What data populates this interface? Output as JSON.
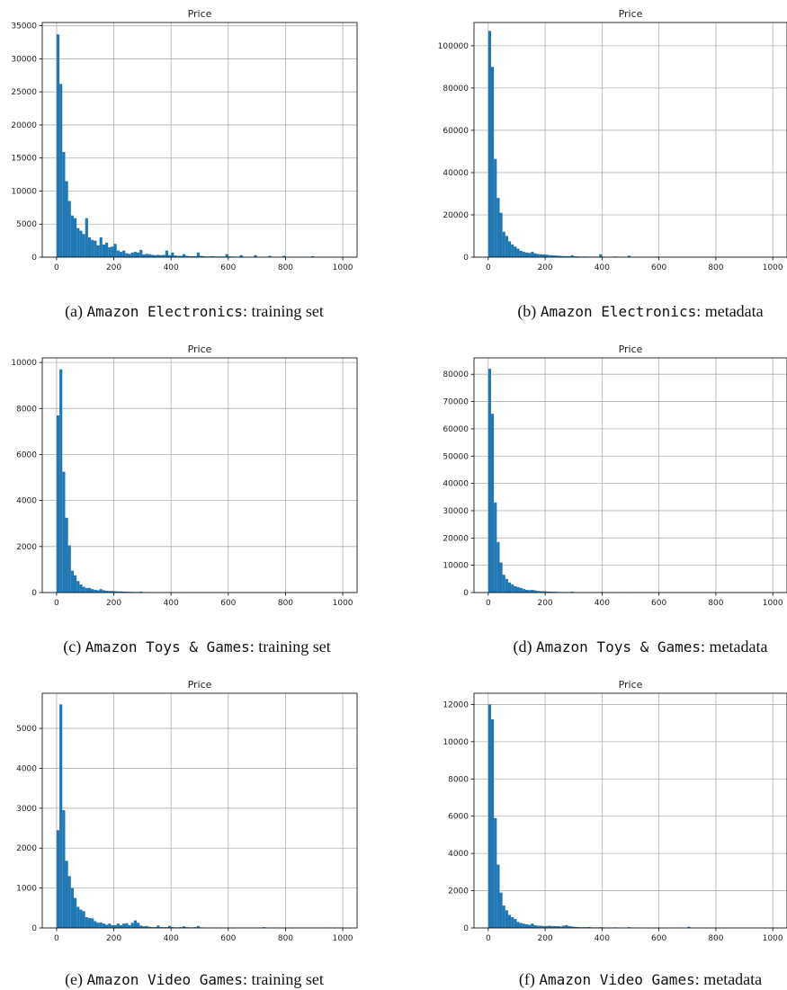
{
  "figure": {
    "colors": {
      "bar": "#1f77b4",
      "grid": "#b0b0b0",
      "frame": "#000000"
    },
    "panels": [
      {
        "title": "Price",
        "caption": {
          "label": "(a) ",
          "dataset": "Amazon Electronics",
          "suffix": ": training set"
        }
      },
      {
        "title": "Price",
        "caption": {
          "label": "(b) ",
          "dataset": "Amazon Electronics",
          "suffix": ": metadata"
        }
      },
      {
        "title": "Price",
        "caption": {
          "label": "(c) ",
          "dataset": "Amazon Toys & Games",
          "suffix": ": training set"
        }
      },
      {
        "title": "Price",
        "caption": {
          "label": "(d) ",
          "dataset": "Amazon Toys & Games",
          "suffix": ": metadata"
        }
      },
      {
        "title": "Price",
        "caption": {
          "label": "(e) ",
          "dataset": "Amazon Video Games",
          "suffix": ": training set"
        }
      },
      {
        "title": "Price",
        "caption": {
          "label": "(f) ",
          "dataset": "Amazon Video Games",
          "suffix": ": metadata"
        }
      }
    ]
  },
  "chart_data": [
    {
      "type": "bar",
      "title": "Price",
      "xlabel": "",
      "ylabel": "",
      "x_ticks": [
        0,
        200,
        400,
        600,
        800,
        1000
      ],
      "y_ticks": [
        0,
        5000,
        10000,
        15000,
        20000,
        25000,
        30000,
        35000
      ],
      "xlim": [
        -50,
        1050
      ],
      "ylim": [
        0,
        35500
      ],
      "grid": true,
      "bins": {
        "start": 0,
        "width": 10
      },
      "values": [
        33700,
        26200,
        15900,
        11500,
        8500,
        6300,
        5900,
        4400,
        4000,
        3500,
        5900,
        3000,
        2600,
        2500,
        1800,
        3000,
        1900,
        2200,
        1500,
        1600,
        2000,
        1000,
        800,
        1000,
        600,
        500,
        700,
        800,
        700,
        1100,
        400,
        500,
        450,
        350,
        300,
        350,
        300,
        350,
        1000,
        300,
        700,
        250,
        200,
        200,
        450,
        200,
        150,
        150,
        150,
        700,
        200,
        150,
        100,
        100,
        150,
        100,
        100,
        100,
        100,
        450,
        100,
        100,
        80,
        80,
        300,
        80,
        60,
        60,
        60,
        300,
        60,
        50,
        50,
        50,
        200,
        50,
        40,
        40,
        40,
        200,
        40,
        30,
        30,
        30,
        60,
        30,
        30,
        30,
        30,
        150,
        30,
        30,
        30,
        30,
        30,
        20,
        20,
        20,
        20,
        30
      ]
    },
    {
      "type": "bar",
      "title": "Price",
      "xlabel": "",
      "ylabel": "",
      "x_ticks": [
        0,
        200,
        400,
        600,
        800,
        1000
      ],
      "y_ticks": [
        0,
        20000,
        40000,
        60000,
        80000,
        100000
      ],
      "xlim": [
        -50,
        1050
      ],
      "ylim": [
        0,
        111000
      ],
      "grid": true,
      "bins": {
        "start": 0,
        "width": 10
      },
      "values": [
        107000,
        90000,
        46500,
        28000,
        21000,
        12000,
        10000,
        7500,
        6000,
        5000,
        4000,
        3000,
        2500,
        2200,
        2000,
        2500,
        1800,
        1500,
        1400,
        1300,
        1200,
        1000,
        900,
        800,
        700,
        600,
        500,
        500,
        450,
        900,
        400,
        350,
        300,
        300,
        300,
        250,
        250,
        250,
        250,
        1400,
        250,
        200,
        200,
        200,
        300,
        200,
        150,
        150,
        150,
        700,
        150,
        120,
        120,
        100,
        100,
        100,
        100,
        100,
        100,
        300,
        100,
        80,
        80,
        80,
        200,
        80,
        60,
        60,
        60,
        200,
        60,
        50,
        50,
        50,
        100,
        50,
        40,
        40,
        40,
        150,
        40,
        30,
        30,
        30,
        50,
        30,
        30,
        30,
        30,
        150,
        30,
        30,
        30,
        30,
        30,
        20,
        20,
        20,
        20,
        50
      ]
    },
    {
      "type": "bar",
      "title": "Price",
      "xlabel": "",
      "ylabel": "",
      "x_ticks": [
        0,
        200,
        400,
        600,
        800,
        1000
      ],
      "y_ticks": [
        0,
        2000,
        4000,
        6000,
        8000,
        10000
      ],
      "xlim": [
        -50,
        1050
      ],
      "ylim": [
        0,
        10200
      ],
      "grid": true,
      "bins": {
        "start": 0,
        "width": 10
      },
      "values": [
        7700,
        9700,
        5250,
        3250,
        2050,
        950,
        750,
        500,
        350,
        250,
        200,
        200,
        150,
        120,
        100,
        150,
        100,
        80,
        70,
        70,
        60,
        50,
        50,
        40,
        40,
        30,
        30,
        25,
        25,
        40,
        20,
        20,
        15,
        15,
        15,
        10,
        10,
        10,
        10,
        20,
        10,
        8,
        8,
        8,
        8,
        5,
        5,
        5,
        5,
        10,
        5,
        5,
        5,
        4,
        4,
        4,
        4,
        4,
        4,
        5,
        3,
        3,
        3,
        3,
        3,
        3,
        3,
        3,
        3,
        3,
        2,
        2,
        2,
        2,
        2,
        2,
        2,
        2,
        2,
        2,
        2,
        2,
        2,
        2,
        2,
        2,
        2,
        2,
        2,
        2,
        2,
        2,
        2,
        2,
        2,
        2,
        2,
        2,
        2,
        2
      ]
    },
    {
      "type": "bar",
      "title": "Price",
      "xlabel": "",
      "ylabel": "",
      "x_ticks": [
        0,
        200,
        400,
        600,
        800,
        1000
      ],
      "y_ticks": [
        0,
        10000,
        20000,
        30000,
        40000,
        50000,
        60000,
        70000,
        80000
      ],
      "xlim": [
        -50,
        1050
      ],
      "ylim": [
        0,
        86000
      ],
      "grid": true,
      "bins": {
        "start": 0,
        "width": 10
      },
      "values": [
        82000,
        65500,
        33000,
        18500,
        11000,
        6500,
        5000,
        3700,
        3000,
        2300,
        2000,
        1700,
        1300,
        1000,
        900,
        1000,
        800,
        600,
        500,
        500,
        400,
        350,
        300,
        300,
        250,
        200,
        200,
        200,
        150,
        300,
        150,
        120,
        120,
        100,
        100,
        100,
        80,
        80,
        80,
        200,
        80,
        70,
        60,
        60,
        60,
        50,
        50,
        50,
        50,
        150,
        50,
        40,
        40,
        40,
        40,
        40,
        30,
        30,
        30,
        80,
        30,
        30,
        30,
        30,
        30,
        30,
        20,
        20,
        20,
        50,
        20,
        20,
        20,
        20,
        20,
        20,
        20,
        20,
        20,
        40,
        20,
        20,
        20,
        20,
        20,
        20,
        20,
        20,
        20,
        30,
        20,
        20,
        20,
        20,
        20,
        20,
        20,
        20,
        20,
        20
      ]
    },
    {
      "type": "bar",
      "title": "Price",
      "xlabel": "",
      "ylabel": "",
      "x_ticks": [
        0,
        200,
        400,
        600,
        800,
        1000
      ],
      "y_ticks": [
        0,
        1000,
        2000,
        3000,
        4000,
        5000
      ],
      "xlim": [
        -50,
        1050
      ],
      "ylim": [
        0,
        5880
      ],
      "grid": true,
      "bins": {
        "start": 0,
        "width": 10
      },
      "values": [
        2450,
        5600,
        2950,
        1680,
        1300,
        1000,
        750,
        530,
        460,
        420,
        270,
        250,
        240,
        170,
        130,
        140,
        110,
        80,
        110,
        70,
        70,
        110,
        70,
        110,
        120,
        70,
        130,
        190,
        130,
        60,
        40,
        50,
        30,
        20,
        20,
        60,
        20,
        20,
        20,
        50,
        20,
        15,
        15,
        20,
        40,
        20,
        15,
        15,
        20,
        50,
        15,
        10,
        10,
        10,
        10,
        10,
        10,
        10,
        10,
        10,
        10,
        10,
        10,
        10,
        10,
        10,
        10,
        10,
        10,
        10,
        10,
        10,
        20,
        10,
        10,
        10,
        10,
        10,
        10,
        10,
        10,
        10,
        10,
        10,
        10,
        10,
        10,
        10,
        10,
        10,
        10,
        10,
        10,
        10,
        10,
        10,
        10,
        10,
        10,
        10
      ]
    },
    {
      "type": "bar",
      "title": "Price",
      "xlabel": "",
      "ylabel": "",
      "x_ticks": [
        0,
        200,
        400,
        600,
        800,
        1000
      ],
      "y_ticks": [
        0,
        2000,
        4000,
        6000,
        8000,
        10000,
        12000
      ],
      "xlim": [
        -50,
        1050
      ],
      "ylim": [
        0,
        12600
      ],
      "grid": true,
      "bins": {
        "start": 0,
        "width": 10
      },
      "values": [
        12000,
        11200,
        5900,
        3400,
        1900,
        1200,
        950,
        700,
        580,
        480,
        320,
        270,
        230,
        200,
        170,
        230,
        150,
        120,
        120,
        100,
        100,
        120,
        100,
        100,
        100,
        80,
        120,
        150,
        100,
        80,
        60,
        50,
        40,
        40,
        40,
        50,
        30,
        30,
        30,
        40,
        30,
        25,
        25,
        25,
        30,
        25,
        20,
        20,
        20,
        40,
        20,
        20,
        20,
        15,
        15,
        15,
        15,
        15,
        15,
        20,
        15,
        15,
        15,
        15,
        15,
        15,
        15,
        15,
        15,
        15,
        60,
        15,
        15,
        10,
        10,
        10,
        10,
        10,
        10,
        10,
        10,
        10,
        10,
        10,
        10,
        10,
        10,
        10,
        10,
        10,
        10,
        10,
        10,
        10,
        10,
        10,
        10,
        10,
        10,
        10
      ]
    }
  ]
}
